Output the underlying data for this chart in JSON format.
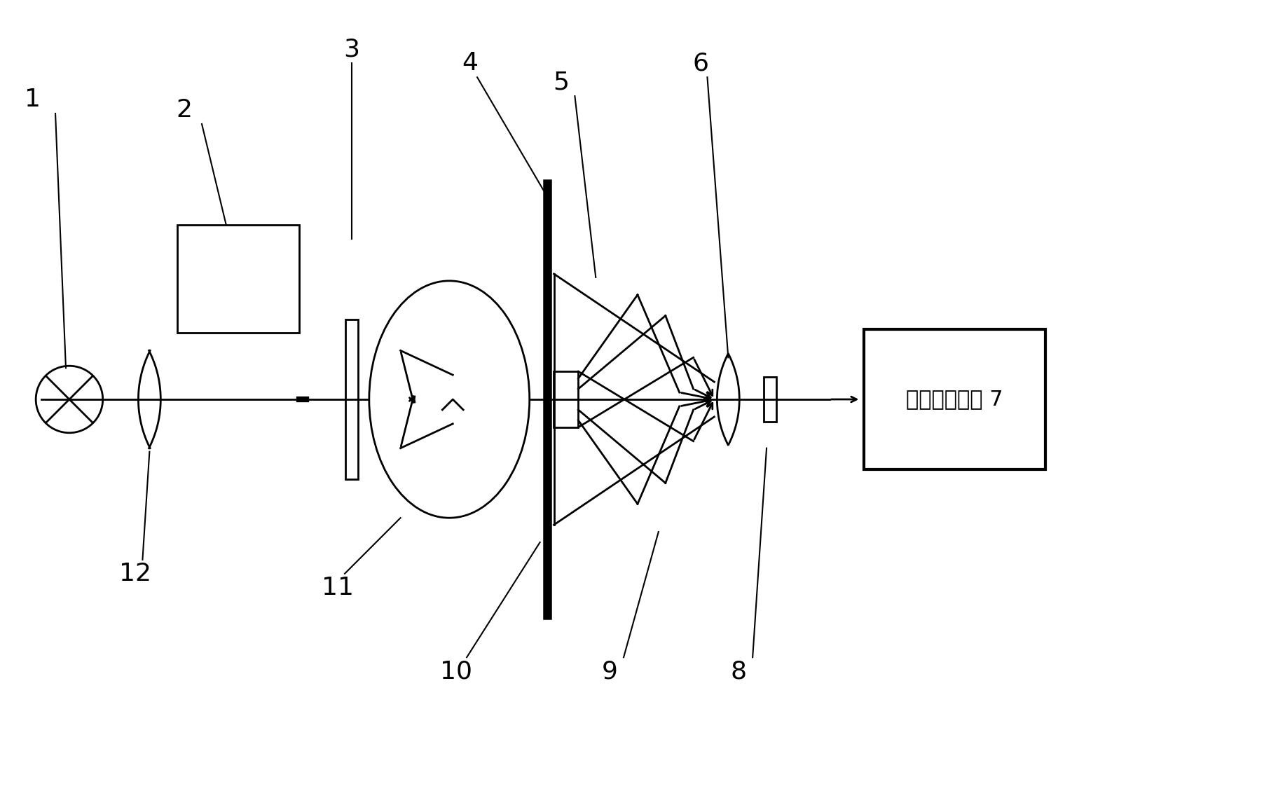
{
  "bg_color": "#ffffff",
  "line_color": "#000000",
  "lw": 2.0,
  "signal_text": "信号处理系统 7"
}
